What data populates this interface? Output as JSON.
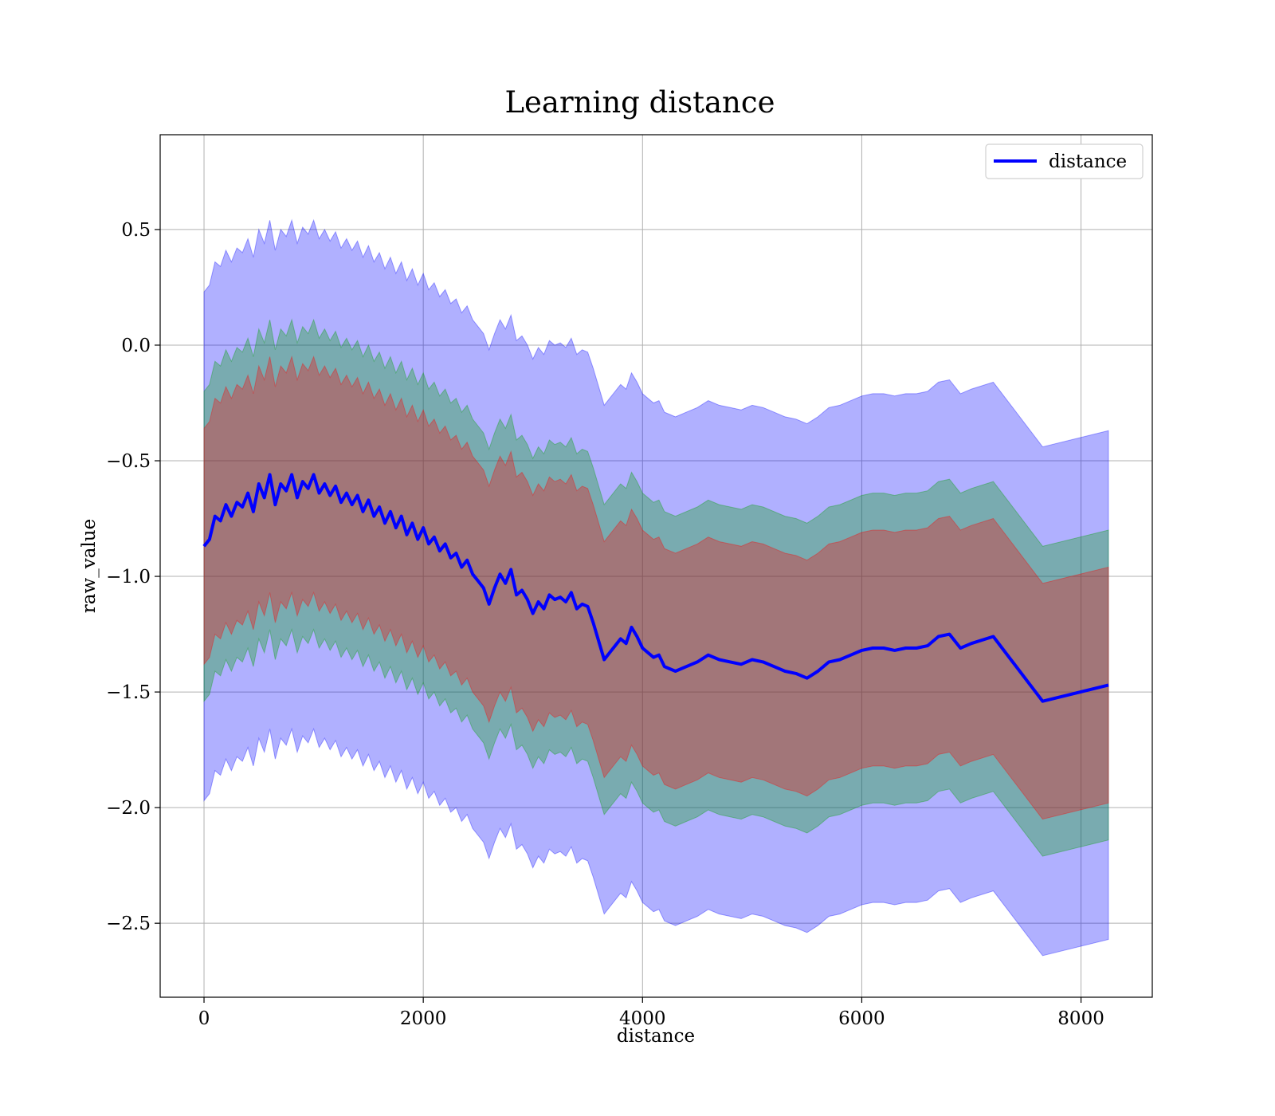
{
  "chart_data": {
    "type": "line",
    "title": "Learning distance",
    "xlabel": "distance",
    "ylabel": "raw_value",
    "xlim": [
      -400,
      8650
    ],
    "ylim": [
      -2.82,
      0.91
    ],
    "xticks": [
      0,
      2000,
      4000,
      6000,
      8000
    ],
    "xtick_labels": [
      "0",
      "2000",
      "4000",
      "6000",
      "8000"
    ],
    "yticks": [
      0.5,
      0.0,
      -0.5,
      -1.0,
      -1.5,
      -2.0,
      -2.5
    ],
    "ytick_labels": [
      "0.5",
      "0.0",
      "−0.5",
      "−1.0",
      "−1.5",
      "−2.0",
      "−2.5"
    ],
    "grid": true,
    "legend": {
      "position": "top-right",
      "entries": [
        "distance"
      ]
    },
    "series": [
      {
        "name": "distance",
        "color": "#0000ff",
        "x": [
          0,
          50,
          100,
          150,
          200,
          250,
          300,
          350,
          400,
          450,
          500,
          550,
          600,
          650,
          700,
          750,
          800,
          850,
          900,
          950,
          1000,
          1050,
          1100,
          1150,
          1200,
          1250,
          1300,
          1350,
          1400,
          1450,
          1500,
          1550,
          1600,
          1650,
          1700,
          1750,
          1800,
          1850,
          1900,
          1950,
          2000,
          2050,
          2100,
          2150,
          2200,
          2250,
          2300,
          2350,
          2400,
          2450,
          2500,
          2550,
          2600,
          2650,
          2700,
          2750,
          2800,
          2850,
          2900,
          2950,
          3000,
          3050,
          3100,
          3150,
          3200,
          3250,
          3300,
          3350,
          3400,
          3450,
          3500,
          3550,
          3600,
          3650,
          3700,
          3750,
          3800,
          3850,
          3900,
          3950,
          4000,
          4050,
          4100,
          4150,
          4200,
          4250,
          4300,
          4400,
          4500,
          4600,
          4700,
          4800,
          4900,
          5000,
          5100,
          5200,
          5300,
          5400,
          5500,
          5600,
          5700,
          5800,
          5900,
          6000,
          6100,
          6200,
          6300,
          6400,
          6500,
          6600,
          6700,
          6800,
          6900,
          7000,
          7200,
          7650,
          8250
        ],
        "values": [
          -0.87,
          -0.84,
          -0.74,
          -0.76,
          -0.69,
          -0.74,
          -0.68,
          -0.7,
          -0.64,
          -0.72,
          -0.6,
          -0.66,
          -0.56,
          -0.69,
          -0.6,
          -0.63,
          -0.56,
          -0.66,
          -0.59,
          -0.62,
          -0.56,
          -0.64,
          -0.6,
          -0.65,
          -0.61,
          -0.68,
          -0.64,
          -0.69,
          -0.65,
          -0.72,
          -0.67,
          -0.74,
          -0.7,
          -0.77,
          -0.72,
          -0.79,
          -0.74,
          -0.82,
          -0.77,
          -0.84,
          -0.79,
          -0.86,
          -0.83,
          -0.89,
          -0.86,
          -0.92,
          -0.9,
          -0.96,
          -0.93,
          -0.99,
          -1.02,
          -1.05,
          -1.12,
          -1.05,
          -0.99,
          -1.03,
          -0.97,
          -1.08,
          -1.06,
          -1.1,
          -1.16,
          -1.11,
          -1.14,
          -1.08,
          -1.1,
          -1.09,
          -1.11,
          -1.07,
          -1.14,
          -1.12,
          -1.13,
          -1.2,
          -1.28,
          -1.36,
          -1.33,
          -1.3,
          -1.27,
          -1.29,
          -1.22,
          -1.26,
          -1.31,
          -1.33,
          -1.35,
          -1.34,
          -1.39,
          -1.4,
          -1.41,
          -1.39,
          -1.37,
          -1.34,
          -1.36,
          -1.37,
          -1.38,
          -1.36,
          -1.37,
          -1.39,
          -1.41,
          -1.42,
          -1.44,
          -1.41,
          -1.37,
          -1.36,
          -1.34,
          -1.32,
          -1.31,
          -1.31,
          -1.32,
          -1.31,
          -1.31,
          -1.3,
          -1.26,
          -1.25,
          -1.31,
          -1.29,
          -1.26,
          -1.54,
          -1.47
        ]
      }
    ],
    "bands": [
      {
        "name": "outer",
        "color": "#0000ff",
        "opacity": 0.31,
        "offset": 1.1
      },
      {
        "name": "middle",
        "color": "#00a000",
        "opacity": 0.31,
        "offset": 0.67
      },
      {
        "name": "inner",
        "color": "#ff0000",
        "opacity": 0.31,
        "offset": 0.51
      }
    ]
  }
}
